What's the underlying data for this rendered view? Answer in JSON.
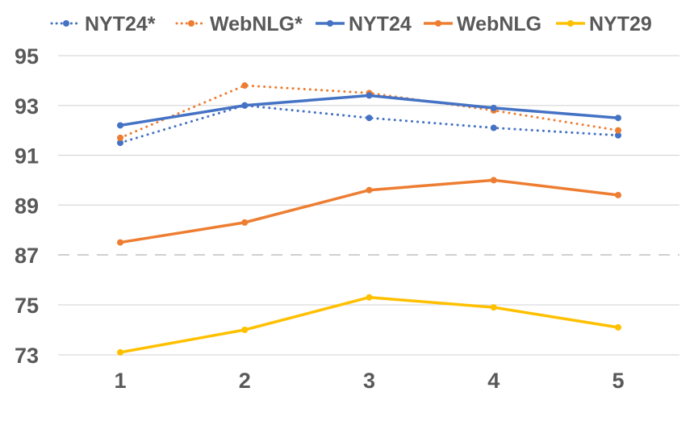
{
  "chart_data": {
    "type": "line",
    "x": [
      1,
      2,
      3,
      4,
      5
    ],
    "y_axis": {
      "broken": true,
      "tick_labels": [
        "95",
        "93",
        "91",
        "89",
        "87",
        "75",
        "73"
      ],
      "upper_segment": [
        87,
        95
      ],
      "lower_segment": [
        73,
        75
      ]
    },
    "grid": "horizontal",
    "legend_position": "top",
    "series": [
      {
        "name": "NYT24*",
        "color": "#4472C4",
        "style": "dotted",
        "values": [
          91.5,
          93.0,
          92.5,
          92.1,
          91.8
        ]
      },
      {
        "name": "WebNLG*",
        "color": "#ED7D31",
        "style": "dotted",
        "values": [
          91.7,
          93.8,
          93.5,
          92.8,
          92.0
        ]
      },
      {
        "name": "NYT24",
        "color": "#4472C4",
        "style": "solid",
        "values": [
          92.2,
          93.0,
          93.4,
          92.9,
          92.5
        ]
      },
      {
        "name": "WebNLG",
        "color": "#ED7D31",
        "style": "solid",
        "values": [
          87.5,
          88.3,
          89.6,
          90.0,
          89.4
        ]
      },
      {
        "name": "NYT29",
        "color": "#FFC000",
        "style": "solid",
        "values": [
          73.1,
          74.0,
          75.3,
          74.9,
          74.1
        ]
      }
    ]
  }
}
